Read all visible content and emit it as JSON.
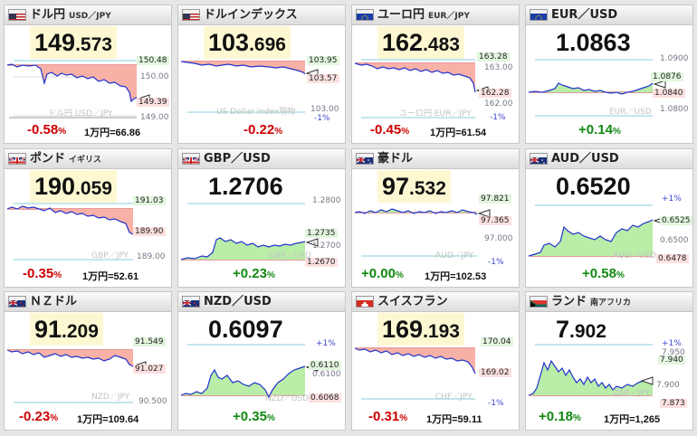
{
  "colors": {
    "up": "#118811",
    "down": "#cc0000",
    "line": "#2222cc",
    "fill_up": "#b9eda8",
    "fill_down": "#f7b1a6",
    "header": "#dcdcdc",
    "price_bg": "#fdf8d2"
  },
  "cards": [
    {
      "flag": "us-flag-icon",
      "title": "ドル円",
      "sub": "USD／JPY",
      "price_big": "149",
      "price_small": ".573",
      "chg": "-0.58",
      "pct": "%",
      "conv": "1万円=66.86",
      "labels": {
        "top": "150.48",
        "mid": "150.00",
        "cur": "149.39",
        "bot": "149.00",
        "wm": "ドル円 USD／JPY"
      }
    },
    {
      "flag": "us-flag-icon",
      "title": "ドルインデックス",
      "sub": "",
      "price_big": "103",
      "price_small": ".696",
      "chg": "-0.22",
      "pct": "%",
      "conv": "",
      "labels": {
        "top": "103.95",
        "cur": "103.57",
        "bot": "103.00",
        "wm": "US Dollar index現物",
        "pctlbl": "-1%"
      }
    },
    {
      "flag": "eu-flag-icon",
      "title": "ユーロ円",
      "sub": "EUR／JPY",
      "price_big": "162",
      "price_small": ".483",
      "chg": "-0.45",
      "pct": "%",
      "conv": "1万円=61.54",
      "labels": {
        "top": "163.28",
        "mid": "163.00",
        "cur": "162.28",
        "bot": "162.00",
        "wm": "ユーロ円 EUR／JPY",
        "pctlbl": "-1%"
      }
    },
    {
      "flag": "eu-flag-icon",
      "title": "EUR／USD",
      "sub": "",
      "price_big": "1.0863",
      "price_small": "",
      "chg": "+0.14",
      "pct": "%",
      "conv": "",
      "labels": {
        "top": "1.0900",
        "hi": "1.0876",
        "cur": "1.0840",
        "bot": "1.0800",
        "wm": "EUR／USD"
      }
    },
    {
      "flag": "uk-flag-icon",
      "title": "ポンド",
      "sub": "イギリス",
      "price_big": "190",
      "price_small": ".059",
      "chg": "-0.35",
      "pct": "%",
      "conv": "1万円=52.61",
      "labels": {
        "top": "191.03",
        "cur": "189.90",
        "bot": "189.00",
        "wm": "GBP／JPY"
      }
    },
    {
      "flag": "uk-flag-icon",
      "title": "GBP／USD",
      "sub": "",
      "price_big": "1.2706",
      "price_small": "",
      "chg": "+0.23",
      "pct": "%",
      "conv": "",
      "labels": {
        "top": "1.2800",
        "hi": "1.2735",
        "cur": "1.2700",
        "bot": "1.2670",
        "wm": "GBP／USD"
      }
    },
    {
      "flag": "au-flag-icon",
      "title": "豪ドル",
      "sub": "",
      "price_big": "97",
      "price_small": ".532",
      "chg": "+0.00",
      "pct": "%",
      "conv": "1万円=102.53",
      "labels": {
        "top": "97.821",
        "cur": "97.365",
        "mid": "97.000",
        "pctlbl": "-1%",
        "wm": "AUD／JPY"
      }
    },
    {
      "flag": "au-flag-icon",
      "title": "AUD／USD",
      "sub": "",
      "price_big": "0.6520",
      "price_small": "",
      "chg": "+0.58",
      "pct": "%",
      "conv": "",
      "labels": {
        "pctlbl": "+1%",
        "hi": "0.6525",
        "mid": "0.6500",
        "cur": "0.6478",
        "wm": "AUD／USD"
      }
    },
    {
      "flag": "nz-flag-icon",
      "title": "ＮＺドル",
      "sub": "",
      "price_big": "91",
      "price_small": ".209",
      "chg": "-0.23",
      "pct": "%",
      "conv": "1万円=109.64",
      "labels": {
        "top": "91.549",
        "cur": "91.027",
        "bot": "90.500",
        "wm": "NZD／JPY"
      }
    },
    {
      "flag": "nz-flag-icon",
      "title": "NZD／USD",
      "sub": "",
      "price_big": "0.6097",
      "price_small": "",
      "chg": "+0.35",
      "pct": "%",
      "conv": "",
      "labels": {
        "pctlbl": "+1%",
        "hi": "0.6110",
        "mid": "0.6100",
        "cur": "0.6068",
        "wm": "NZD／USD"
      }
    },
    {
      "flag": "ch-flag-icon",
      "title": "スイスフラン",
      "sub": "",
      "price_big": "169",
      "price_small": ".193",
      "chg": "-0.31",
      "pct": "%",
      "conv": "1万円=59.11",
      "labels": {
        "top": "170.04",
        "cur": "169.02",
        "pctlbl": "-1%",
        "wm": "CHF／JPY"
      }
    },
    {
      "flag": "za-flag-icon",
      "title": "ランド",
      "sub": "南アフリカ",
      "price_big": "7",
      "price_small": ".902",
      "chg": "+0.18",
      "pct": "%",
      "conv": "1万円=1,265",
      "labels": {
        "pctlbl": "+1%",
        "top": "7.950",
        "hi": "7.940",
        "mid": "7.900",
        "cur": "7.873",
        "wm": "ZAR／JPY"
      }
    }
  ]
}
